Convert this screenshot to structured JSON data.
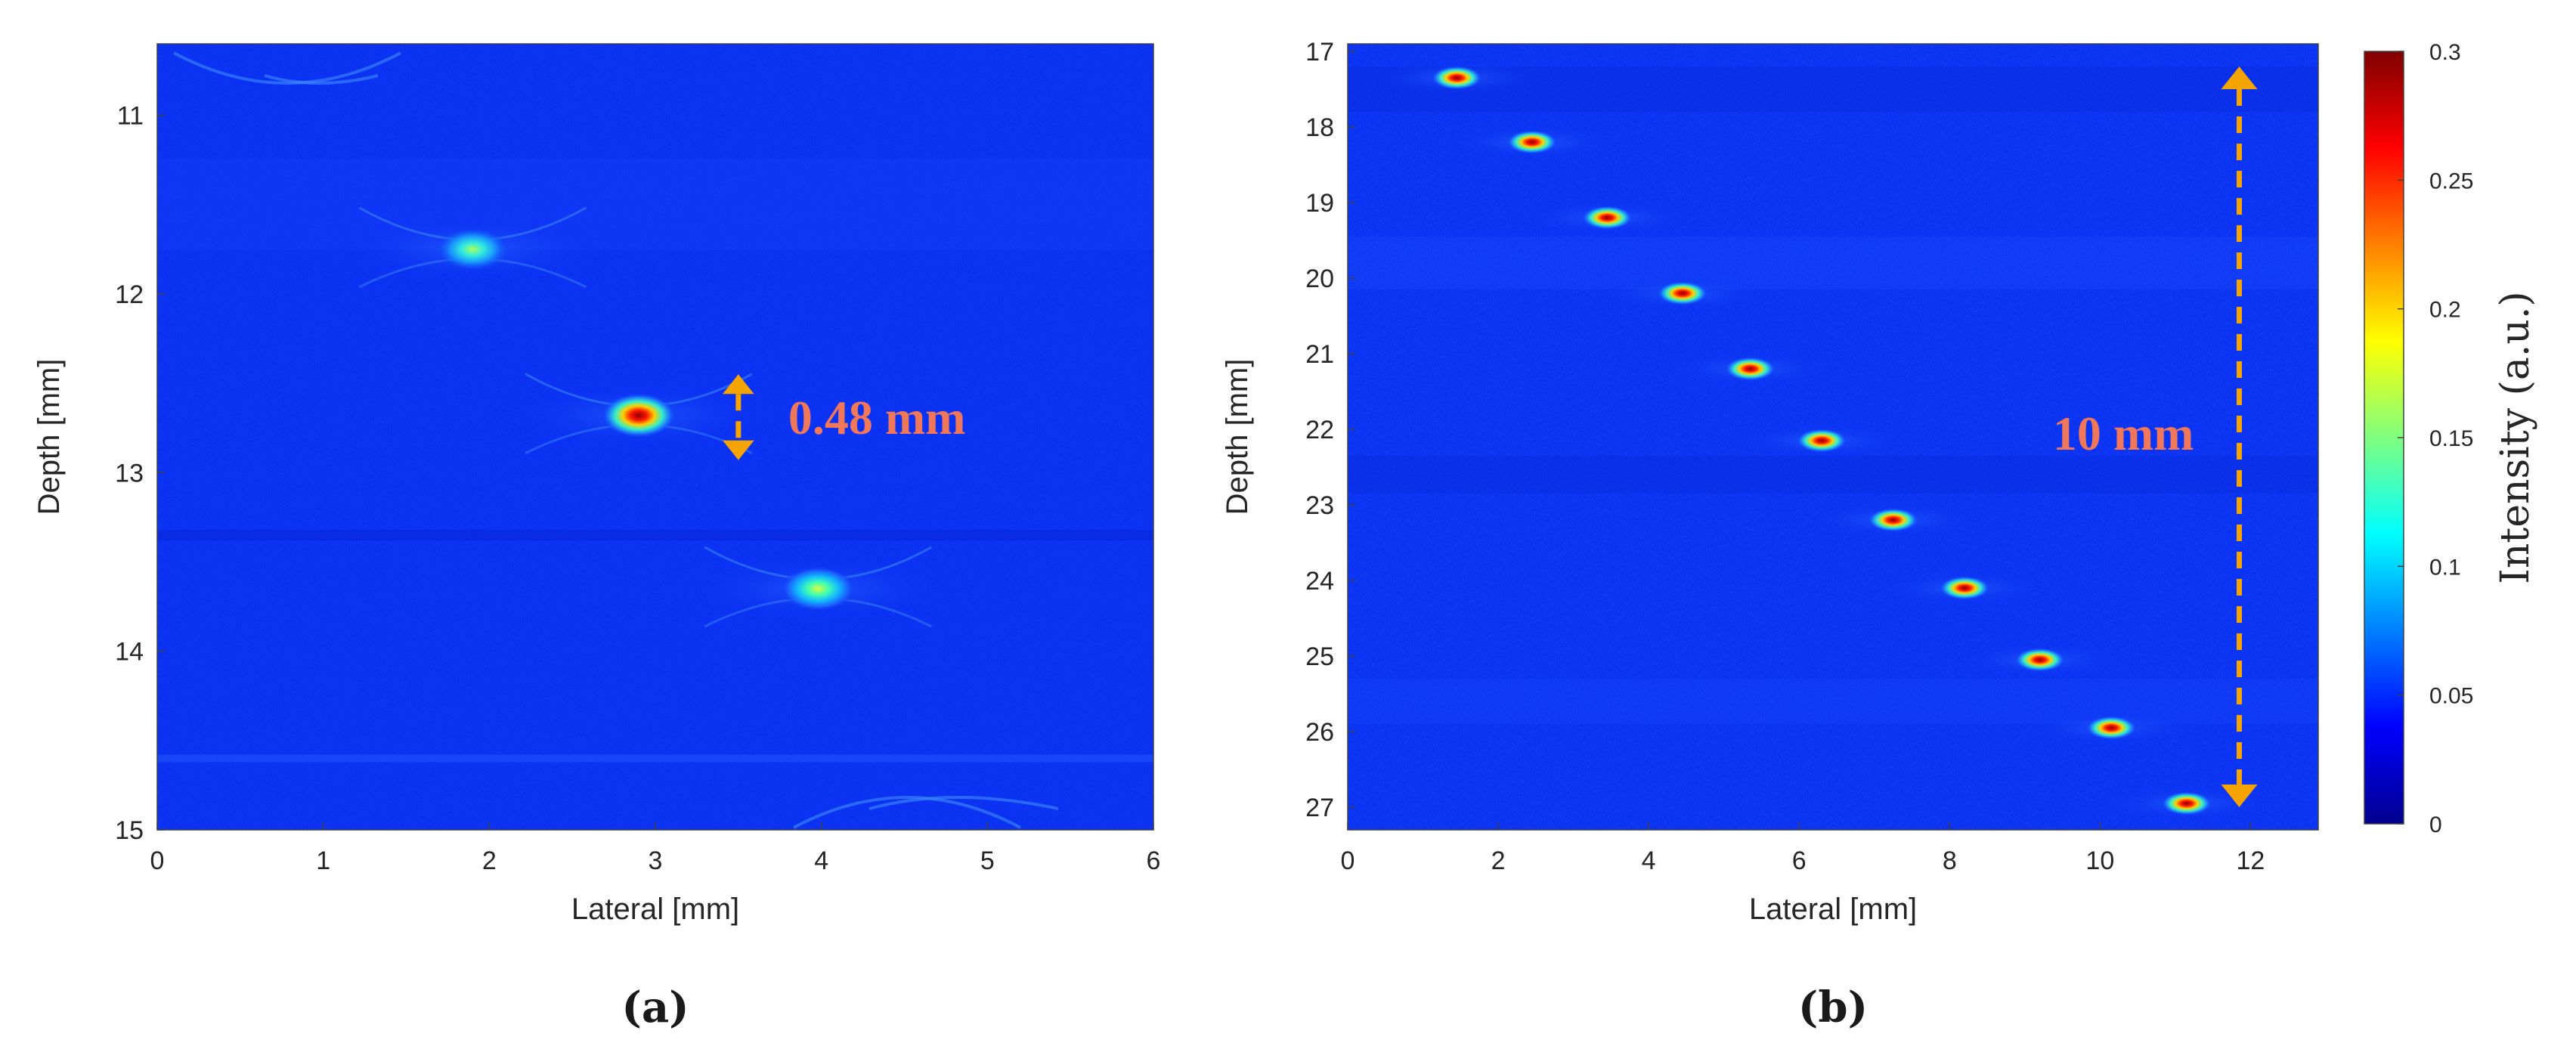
{
  "colors": {
    "background": "#0a2ff2",
    "annotation_arrow": "#f5a300",
    "annotation_text": "#f0775a"
  },
  "panels": {
    "a": {
      "label": "(a)"
    },
    "b": {
      "label": "(b)"
    }
  },
  "chart_data": [
    {
      "type": "heatmap",
      "panel": "a",
      "xlabel": "Lateral [mm]",
      "ylabel": "Depth [mm]",
      "xlim": [
        0,
        6
      ],
      "ylim": [
        10.6,
        15
      ],
      "y_reversed": true,
      "x_ticks": [
        0,
        1,
        2,
        3,
        4,
        5,
        6
      ],
      "y_ticks": [
        11,
        12,
        13,
        14,
        15
      ],
      "colormap": "jet",
      "clim": [
        0,
        0.3
      ],
      "points": [
        {
          "x": 1.9,
          "y": 11.75,
          "intensity": 0.14
        },
        {
          "x": 2.9,
          "y": 12.68,
          "intensity": 0.3
        },
        {
          "x": 3.98,
          "y": 13.65,
          "intensity": 0.18
        }
      ],
      "annotation": {
        "text": "0.48 mm",
        "x": 3.5,
        "y_from": 12.45,
        "y_to": 12.93
      }
    },
    {
      "type": "heatmap",
      "panel": "b",
      "xlabel": "Lateral [mm]",
      "ylabel": "Depth [mm]",
      "xlim": [
        0,
        12.9
      ],
      "ylim": [
        16.9,
        27.3
      ],
      "y_reversed": true,
      "x_ticks": [
        0,
        2,
        4,
        6,
        8,
        10,
        12
      ],
      "y_ticks": [
        17,
        18,
        19,
        20,
        21,
        22,
        23,
        24,
        25,
        26,
        27
      ],
      "colormap": "jet",
      "clim": [
        0,
        0.3
      ],
      "colorbar": {
        "label": "Intensity (a.u.)",
        "ticks": [
          "0",
          "0.05",
          "0.1",
          "0.15",
          "0.2",
          "0.25",
          "0.3"
        ],
        "values": [
          0,
          0.05,
          0.1,
          0.15,
          0.2,
          0.25,
          0.3
        ]
      },
      "points": [
        {
          "x": 1.45,
          "y": 17.35,
          "intensity": 0.3
        },
        {
          "x": 2.45,
          "y": 18.2,
          "intensity": 0.3
        },
        {
          "x": 3.45,
          "y": 19.2,
          "intensity": 0.3
        },
        {
          "x": 4.45,
          "y": 20.2,
          "intensity": 0.3
        },
        {
          "x": 5.35,
          "y": 21.2,
          "intensity": 0.3
        },
        {
          "x": 6.3,
          "y": 22.15,
          "intensity": 0.3
        },
        {
          "x": 7.25,
          "y": 23.2,
          "intensity": 0.3
        },
        {
          "x": 8.2,
          "y": 24.1,
          "intensity": 0.3
        },
        {
          "x": 9.2,
          "y": 25.05,
          "intensity": 0.3
        },
        {
          "x": 10.15,
          "y": 25.95,
          "intensity": 0.3
        },
        {
          "x": 11.15,
          "y": 26.95,
          "intensity": 0.3
        }
      ],
      "annotation": {
        "text": "10 mm",
        "x": 11.85,
        "y_from": 17.2,
        "y_to": 27.0
      }
    }
  ]
}
